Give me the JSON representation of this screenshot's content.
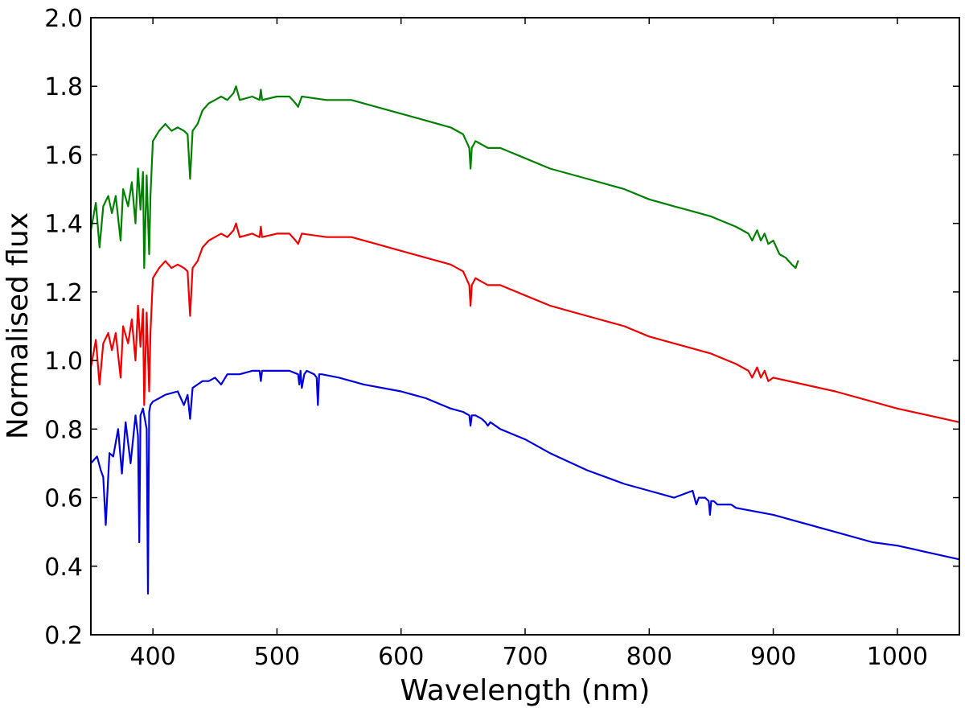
{
  "chart_data": {
    "type": "line",
    "title": "",
    "xlabel": "Wavelength (nm)",
    "ylabel": "Normalised flux",
    "xlim": [
      350,
      1050
    ],
    "ylim": [
      0.2,
      2.0
    ],
    "xticks": [
      400,
      500,
      600,
      700,
      800,
      900,
      1000
    ],
    "xtick_labels": [
      "400",
      "500",
      "600",
      "700",
      "800",
      "900",
      "1000"
    ],
    "yticks": [
      0.2,
      0.4,
      0.6,
      0.8,
      1.0,
      1.2,
      1.4,
      1.6,
      1.8,
      2.0
    ],
    "ytick_labels": [
      "0.2",
      "0.4",
      "0.6",
      "0.8",
      "1.0",
      "1.2",
      "1.4",
      "1.6",
      "1.8",
      "2.0"
    ],
    "grid": false,
    "series": [
      {
        "name": "blue spectrum",
        "color": "#0000dd",
        "x": [
          350,
          355,
          358,
          360,
          362,
          365,
          368,
          372,
          375,
          378,
          382,
          386,
          388,
          389,
          390,
          392,
          395,
          396,
          397,
          398,
          400,
          405,
          410,
          420,
          425,
          428,
          430,
          432,
          436,
          440,
          445,
          450,
          455,
          460,
          470,
          480,
          486,
          487,
          488,
          500,
          510,
          517,
          518,
          519,
          520,
          522,
          524,
          530,
          532,
          533,
          534,
          536,
          550,
          570,
          600,
          620,
          640,
          650,
          655,
          656,
          657,
          660,
          665,
          668,
          670,
          672,
          680,
          700,
          720,
          750,
          780,
          800,
          820,
          835,
          838,
          840,
          845,
          848,
          849,
          850,
          852,
          855,
          866,
          870,
          900,
          920,
          950,
          980,
          1000,
          1050
        ],
        "y": [
          0.7,
          0.72,
          0.68,
          0.66,
          0.52,
          0.73,
          0.72,
          0.8,
          0.67,
          0.82,
          0.7,
          0.84,
          0.78,
          0.47,
          0.84,
          0.86,
          0.8,
          0.32,
          0.85,
          0.87,
          0.88,
          0.89,
          0.9,
          0.91,
          0.87,
          0.9,
          0.83,
          0.92,
          0.93,
          0.94,
          0.94,
          0.95,
          0.93,
          0.96,
          0.96,
          0.97,
          0.97,
          0.94,
          0.97,
          0.97,
          0.97,
          0.96,
          0.93,
          0.97,
          0.92,
          0.96,
          0.97,
          0.96,
          0.95,
          0.87,
          0.96,
          0.96,
          0.95,
          0.93,
          0.91,
          0.89,
          0.86,
          0.85,
          0.84,
          0.81,
          0.84,
          0.84,
          0.83,
          0.82,
          0.81,
          0.82,
          0.8,
          0.77,
          0.73,
          0.68,
          0.64,
          0.62,
          0.6,
          0.62,
          0.58,
          0.6,
          0.6,
          0.59,
          0.55,
          0.59,
          0.59,
          0.58,
          0.58,
          0.57,
          0.55,
          0.53,
          0.5,
          0.47,
          0.46,
          0.42
        ]
      },
      {
        "name": "red spectrum",
        "color": "#ee0000",
        "x": [
          350,
          354,
          357,
          360,
          364,
          367,
          370,
          374,
          376,
          380,
          383,
          386,
          388,
          390,
          392,
          393,
          395,
          397,
          398,
          400,
          405,
          410,
          415,
          420,
          425,
          428,
          430,
          432,
          436,
          440,
          445,
          450,
          455,
          460,
          465,
          467,
          470,
          480,
          486,
          487,
          488,
          500,
          510,
          515,
          517,
          520,
          540,
          560,
          580,
          600,
          620,
          640,
          650,
          655,
          656,
          657,
          660,
          670,
          680,
          700,
          720,
          740,
          760,
          780,
          800,
          820,
          830,
          850,
          870,
          880,
          883,
          887,
          890,
          893,
          896,
          900,
          950,
          1000,
          1050
        ],
        "y": [
          0.98,
          1.06,
          0.93,
          1.05,
          1.08,
          1.03,
          1.08,
          0.95,
          1.1,
          1.05,
          1.12,
          1.0,
          1.16,
          1.04,
          1.15,
          0.87,
          1.14,
          0.91,
          1.08,
          1.24,
          1.27,
          1.29,
          1.27,
          1.28,
          1.27,
          1.26,
          1.13,
          1.27,
          1.29,
          1.33,
          1.35,
          1.36,
          1.37,
          1.36,
          1.38,
          1.4,
          1.36,
          1.37,
          1.36,
          1.39,
          1.36,
          1.37,
          1.37,
          1.35,
          1.34,
          1.37,
          1.36,
          1.36,
          1.34,
          1.32,
          1.3,
          1.28,
          1.26,
          1.22,
          1.16,
          1.22,
          1.24,
          1.22,
          1.22,
          1.19,
          1.16,
          1.14,
          1.12,
          1.1,
          1.07,
          1.05,
          1.04,
          1.02,
          0.99,
          0.97,
          0.95,
          0.98,
          0.95,
          0.97,
          0.94,
          0.95,
          0.91,
          0.86,
          0.82
        ]
      },
      {
        "name": "green spectrum",
        "color": "#008000",
        "x": [
          350,
          354,
          357,
          360,
          364,
          367,
          370,
          374,
          376,
          380,
          383,
          386,
          388,
          390,
          392,
          393,
          395,
          397,
          398,
          400,
          405,
          410,
          415,
          420,
          425,
          428,
          430,
          432,
          436,
          440,
          445,
          450,
          455,
          460,
          465,
          467,
          470,
          480,
          486,
          487,
          488,
          500,
          510,
          515,
          517,
          520,
          540,
          560,
          580,
          600,
          620,
          640,
          650,
          655,
          656,
          657,
          660,
          670,
          680,
          700,
          720,
          740,
          760,
          780,
          800,
          820,
          830,
          850,
          870,
          880,
          883,
          887,
          890,
          893,
          896,
          900,
          905,
          910,
          915,
          918,
          920
        ],
        "y": [
          1.38,
          1.46,
          1.33,
          1.45,
          1.48,
          1.43,
          1.48,
          1.35,
          1.5,
          1.45,
          1.52,
          1.4,
          1.56,
          1.44,
          1.55,
          1.27,
          1.54,
          1.31,
          1.48,
          1.64,
          1.67,
          1.69,
          1.67,
          1.68,
          1.67,
          1.66,
          1.53,
          1.67,
          1.69,
          1.73,
          1.75,
          1.76,
          1.77,
          1.76,
          1.78,
          1.8,
          1.76,
          1.77,
          1.76,
          1.79,
          1.76,
          1.77,
          1.77,
          1.75,
          1.74,
          1.77,
          1.76,
          1.76,
          1.74,
          1.72,
          1.7,
          1.68,
          1.66,
          1.62,
          1.56,
          1.62,
          1.64,
          1.62,
          1.62,
          1.59,
          1.56,
          1.54,
          1.52,
          1.5,
          1.47,
          1.45,
          1.44,
          1.42,
          1.39,
          1.37,
          1.35,
          1.38,
          1.35,
          1.37,
          1.34,
          1.35,
          1.31,
          1.3,
          1.28,
          1.27,
          1.29
        ]
      }
    ]
  }
}
